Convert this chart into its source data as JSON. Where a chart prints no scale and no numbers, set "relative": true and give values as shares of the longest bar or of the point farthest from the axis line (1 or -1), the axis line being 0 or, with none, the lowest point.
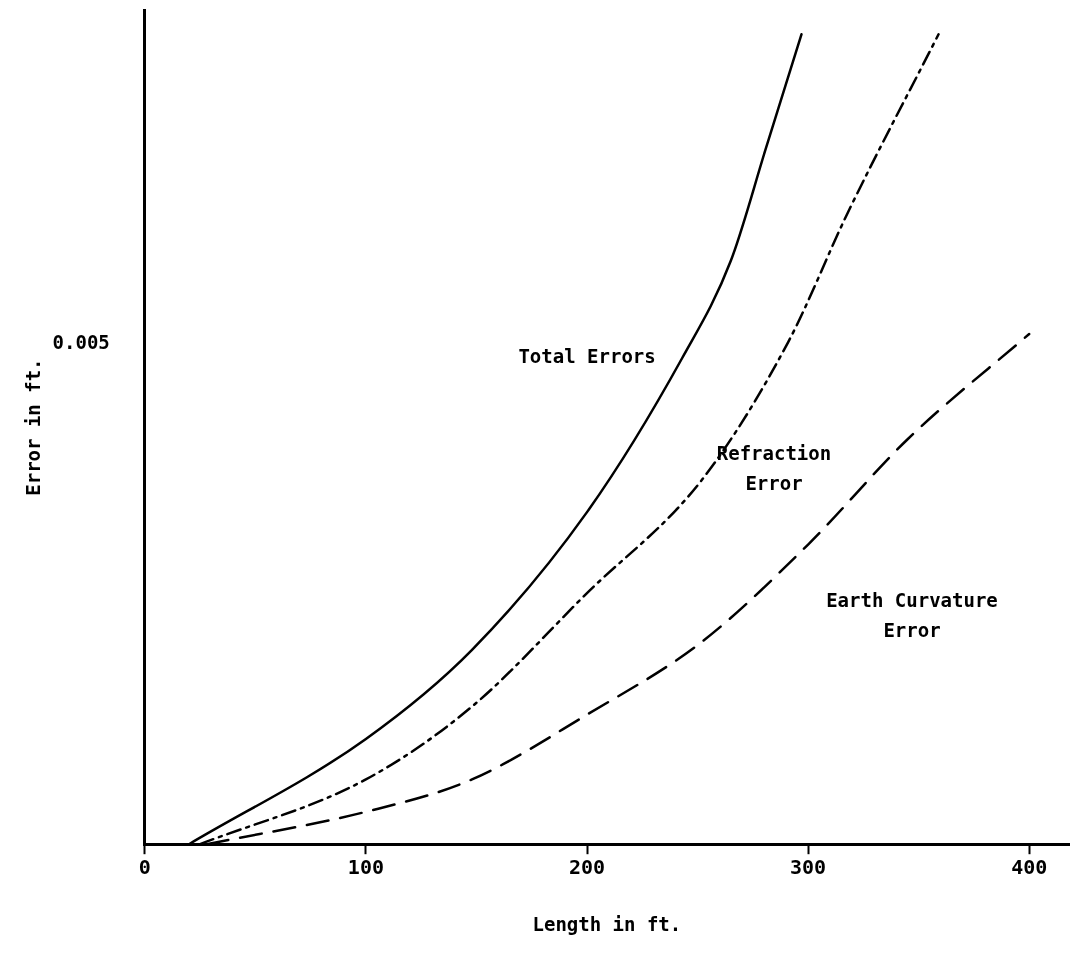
{
  "chart_data": {
    "type": "line",
    "xlabel": "Length in ft.",
    "ylabel": "Error in ft.",
    "xlim": [
      0,
      418
    ],
    "xticks": [
      0,
      100,
      200,
      300,
      400
    ],
    "relative": true,
    "grid": false,
    "legend": false,
    "marker": "none",
    "series": [
      {
        "name": "Total Errors",
        "color": "#000000",
        "line_style": "solid",
        "x": [
          20,
          100,
          148,
          200,
          243,
          265,
          281,
          297
        ],
        "values": [
          0,
          0.13,
          0.24,
          0.41,
          0.6,
          0.72,
          0.86,
          1
        ]
      },
      {
        "name": "Refraction Error",
        "color": "#000000",
        "line_style": "dashdot",
        "x": [
          25,
          100,
          148,
          200,
          252,
          291,
          318,
          359
        ],
        "values": [
          0,
          0.08,
          0.17,
          0.31,
          0.45,
          0.62,
          0.78,
          1
        ]
      },
      {
        "name": "Earth Curvature Error",
        "color": "#000000",
        "line_style": "dashed",
        "x": [
          28,
          100,
          148,
          200,
          252,
          300,
          345,
          400
        ],
        "values": [
          0,
          0.04,
          0.08,
          0.16,
          0.25,
          0.37,
          0.5,
          0.63
        ]
      }
    ],
    "annotations": [
      "0.005"
    ]
  }
}
